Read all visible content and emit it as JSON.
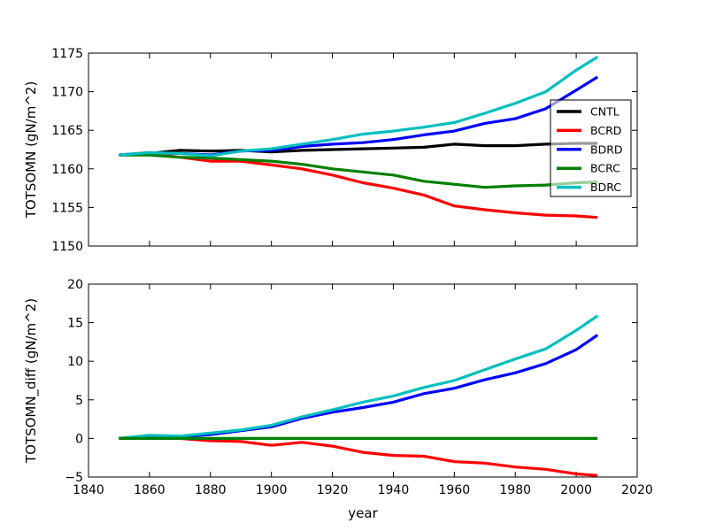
{
  "chart_data": [
    {
      "type": "line",
      "title": "",
      "xlabel": "",
      "ylabel": "TOTSOMN (gN/m^2)",
      "xlim": [
        1840,
        2020
      ],
      "ylim": [
        1150,
        1175
      ],
      "yticks": [
        "1150",
        "1155",
        "1160",
        "1165",
        "1170",
        "1175"
      ],
      "show_xtick_labels": false,
      "legend": "right",
      "series": [
        {
          "name": "CNTL",
          "color": "#000000",
          "x": [
            1850,
            1860,
            1870,
            1880,
            1890,
            1900,
            1910,
            1920,
            1930,
            1940,
            1950,
            1960,
            1970,
            1980,
            1990,
            2000,
            2007
          ],
          "values": [
            1161.8,
            1162.0,
            1162.4,
            1162.3,
            1162.4,
            1162.2,
            1162.4,
            1162.5,
            1162.6,
            1162.7,
            1162.8,
            1163.2,
            1163.0,
            1163.0,
            1163.2,
            1163.3,
            1163.3
          ]
        },
        {
          "name": "BCRD",
          "color": "#ff0000",
          "x": [
            1850,
            1860,
            1870,
            1880,
            1890,
            1900,
            1910,
            1920,
            1930,
            1940,
            1950,
            1960,
            1970,
            1980,
            1990,
            2000,
            2007
          ],
          "values": [
            1161.8,
            1162.0,
            1161.5,
            1161.0,
            1161.0,
            1160.5,
            1160.0,
            1159.2,
            1158.2,
            1157.5,
            1156.6,
            1155.2,
            1154.7,
            1154.3,
            1154.0,
            1153.9,
            1153.7
          ]
        },
        {
          "name": "BDRD",
          "color": "#0000ff",
          "x": [
            1850,
            1860,
            1870,
            1880,
            1890,
            1900,
            1910,
            1920,
            1930,
            1940,
            1950,
            1960,
            1970,
            1980,
            1990,
            2000,
            2007
          ],
          "values": [
            1161.8,
            1162.1,
            1162.0,
            1161.8,
            1162.3,
            1162.4,
            1162.9,
            1163.2,
            1163.4,
            1163.8,
            1164.4,
            1164.9,
            1165.9,
            1166.5,
            1167.8,
            1170.2,
            1171.9
          ]
        },
        {
          "name": "BCRC",
          "color": "#008000",
          "x": [
            1850,
            1860,
            1870,
            1880,
            1890,
            1900,
            1910,
            1920,
            1930,
            1940,
            1950,
            1960,
            1970,
            1980,
            1990,
            2000,
            2007
          ],
          "values": [
            1161.8,
            1161.8,
            1161.5,
            1161.4,
            1161.2,
            1161.0,
            1160.6,
            1160.0,
            1159.6,
            1159.2,
            1158.4,
            1158.0,
            1157.6,
            1157.8,
            1157.9,
            1158.2,
            1158.3
          ]
        },
        {
          "name": "BDRC",
          "color": "#00bfbf",
          "x": [
            1850,
            1860,
            1870,
            1880,
            1890,
            1900,
            1910,
            1920,
            1930,
            1940,
            1950,
            1960,
            1970,
            1980,
            1990,
            2000,
            2007
          ],
          "values": [
            1161.8,
            1162.1,
            1162.0,
            1161.7,
            1162.3,
            1162.6,
            1163.2,
            1163.8,
            1164.5,
            1164.9,
            1165.4,
            1166.0,
            1167.2,
            1168.5,
            1170.0,
            1172.8,
            1174.5
          ]
        }
      ]
    },
    {
      "type": "line",
      "title": "",
      "xlabel": "year",
      "ylabel": "TOTSOMN_diff (gN/m^2)",
      "xlim": [
        1840,
        2020
      ],
      "ylim": [
        -5,
        20
      ],
      "xticks": [
        "1840",
        "1860",
        "1880",
        "1900",
        "1920",
        "1940",
        "1960",
        "1980",
        "2000",
        "2020"
      ],
      "yticks": [
        "−5",
        "0",
        "5",
        "10",
        "15",
        "20"
      ],
      "show_xtick_labels": true,
      "series": [
        {
          "name": "BCRD",
          "color": "#ff0000",
          "x": [
            1850,
            1860,
            1870,
            1880,
            1890,
            1900,
            1910,
            1920,
            1930,
            1940,
            1950,
            1960,
            1970,
            1980,
            1990,
            2000,
            2007
          ],
          "values": [
            0.0,
            0.2,
            0.0,
            -0.3,
            -0.4,
            -0.9,
            -0.5,
            -1.0,
            -1.8,
            -2.2,
            -2.3,
            -3.0,
            -3.2,
            -3.7,
            -4.0,
            -4.6,
            -4.8
          ]
        },
        {
          "name": "BDRD",
          "color": "#0000ff",
          "x": [
            1850,
            1860,
            1870,
            1880,
            1890,
            1900,
            1910,
            1920,
            1930,
            1940,
            1950,
            1960,
            1970,
            1980,
            1990,
            2000,
            2007
          ],
          "values": [
            0.0,
            0.3,
            0.2,
            0.5,
            1.0,
            1.5,
            2.6,
            3.4,
            4.0,
            4.7,
            5.8,
            6.5,
            7.6,
            8.5,
            9.7,
            11.5,
            13.4
          ]
        },
        {
          "name": "BDRC",
          "color": "#00bfbf",
          "x": [
            1850,
            1860,
            1870,
            1880,
            1890,
            1900,
            1910,
            1920,
            1930,
            1940,
            1950,
            1960,
            1970,
            1980,
            1990,
            2000,
            2007
          ],
          "values": [
            0.0,
            0.4,
            0.3,
            0.7,
            1.1,
            1.7,
            2.8,
            3.7,
            4.7,
            5.5,
            6.6,
            7.5,
            8.9,
            10.3,
            11.6,
            14.0,
            15.9
          ]
        },
        {
          "name": "BCRC",
          "color": "#008000",
          "x": [
            1850,
            2007
          ],
          "values": [
            0.0,
            0.0
          ]
        }
      ]
    }
  ]
}
